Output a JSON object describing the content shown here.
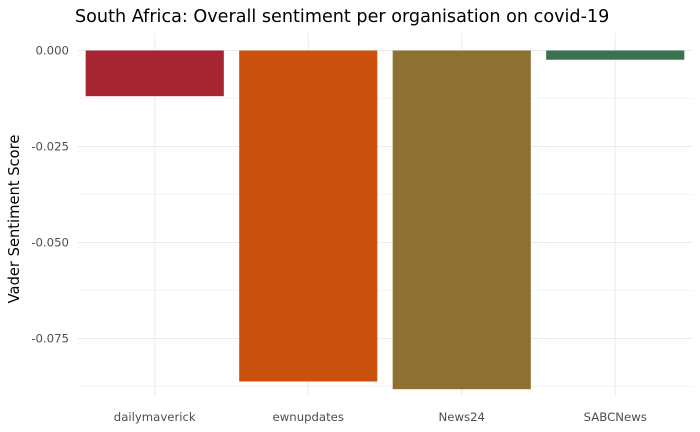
{
  "chart_data": {
    "type": "bar",
    "title": "South Africa: Overall sentiment per organisation on covid-19",
    "xlabel": "",
    "ylabel": "Vader Sentiment Score",
    "categories": [
      "dailymaverick",
      "ewnupdates",
      "News24",
      "SABCNews"
    ],
    "values": [
      -0.0119,
      -0.0862,
      -0.0882,
      -0.0024
    ],
    "colors": [
      "#a52632",
      "#cb520e",
      "#8e7132",
      "#3a7150"
    ],
    "ylim": [
      -0.0884,
      0.0
    ],
    "yticks": [
      0.0,
      -0.025,
      -0.05,
      -0.075
    ],
    "ytick_labels": [
      "0.000",
      "-0.025",
      "-0.050",
      "-0.075"
    ],
    "grid": true,
    "legend": "none"
  }
}
